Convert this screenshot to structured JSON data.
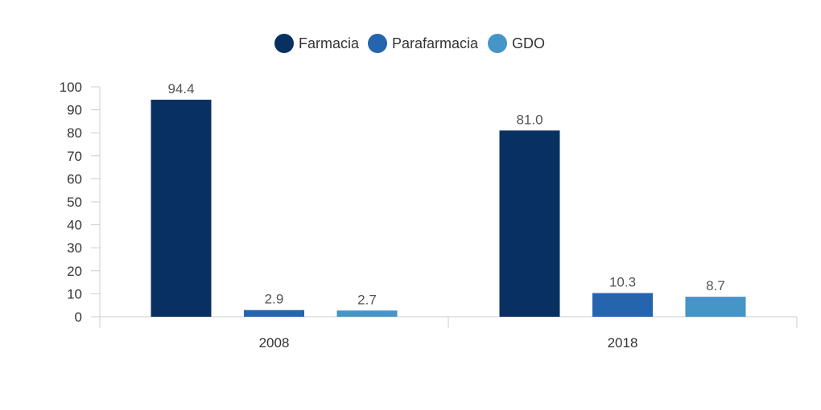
{
  "chart_data": {
    "type": "bar",
    "categories": [
      "2008",
      "2018"
    ],
    "series": [
      {
        "name": "Farmacia",
        "values": [
          94.4,
          81.0
        ],
        "labels": [
          "94.4",
          "81.0"
        ],
        "color": "#083162"
      },
      {
        "name": "Parafarmacia",
        "values": [
          2.9,
          10.3
        ],
        "labels": [
          "2.9",
          "10.3"
        ],
        "color": "#2465ae"
      },
      {
        "name": "GDO",
        "values": [
          2.7,
          8.7
        ],
        "labels": [
          "2.7",
          "8.7"
        ],
        "color": "#4595c7"
      }
    ],
    "ylim": [
      0,
      100
    ],
    "yticks": [
      "0",
      "10",
      "20",
      "30",
      "40",
      "50",
      "60",
      "70",
      "80",
      "90",
      "100"
    ],
    "legend_position": "top-center",
    "grid": false
  }
}
